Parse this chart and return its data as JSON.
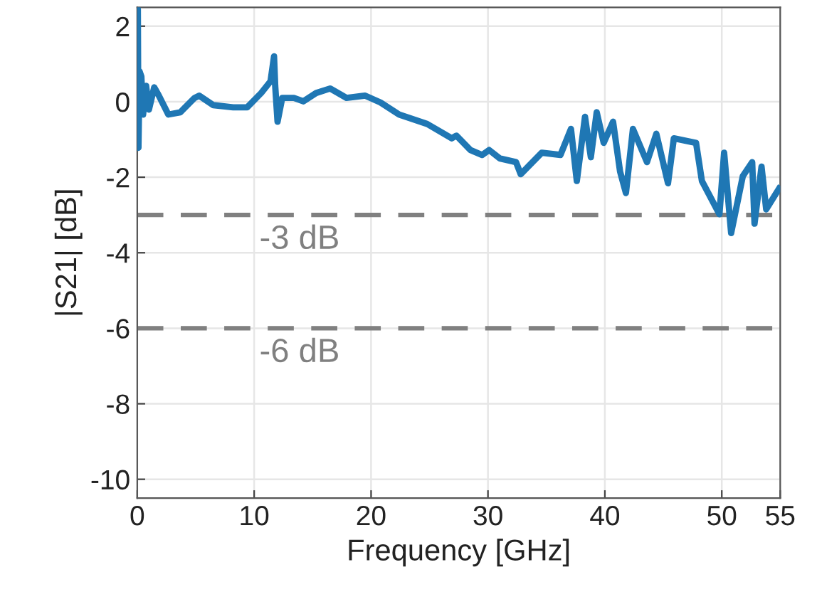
{
  "chart_data": {
    "type": "line",
    "xlabel": "Frequency [GHz]",
    "ylabel": "|S21| [dB]",
    "x": [
      0,
      0.05,
      0.1,
      0.2,
      0.35,
      0.5,
      0.76,
      1.0,
      1.45,
      1.85,
      2.66,
      3.68,
      4.9,
      5.3,
      6.5,
      8.2,
      9.4,
      10.6,
      11.4,
      11.7,
      11.8,
      12.0,
      12.4,
      13.4,
      14.2,
      15.3,
      16.5,
      17.9,
      19.5,
      20.8,
      22.4,
      24.8,
      26.9,
      27.3,
      28.5,
      29.5,
      30.1,
      31.0,
      32.4,
      32.8,
      34.6,
      36.2,
      37.1,
      37.6,
      38.3,
      38.8,
      39.3,
      39.9,
      40.7,
      41.3,
      41.8,
      42.4,
      43.6,
      44.4,
      45.4,
      45.9,
      47.8,
      48.3,
      49.8,
      50.2,
      50.8,
      51.8,
      52.6,
      52.8,
      53.4,
      53.8,
      54.9
    ],
    "series": [
      {
        "color": "#1f77b4",
        "values": [
          0.79,
          2.45,
          -1.22,
          0.8,
          0.67,
          -0.34,
          0.42,
          -0.21,
          0.38,
          0.16,
          -0.34,
          -0.28,
          0.1,
          0.16,
          -0.09,
          -0.15,
          -0.15,
          0.23,
          0.54,
          1.2,
          0.42,
          -0.53,
          0.1,
          0.1,
          0.01,
          0.23,
          0.35,
          0.1,
          0.16,
          -0.02,
          -0.34,
          -0.59,
          -0.97,
          -0.9,
          -1.28,
          -1.41,
          -1.28,
          -1.5,
          -1.6,
          -1.92,
          -1.35,
          -1.41,
          -0.72,
          -2.1,
          -0.4,
          -1.47,
          -0.28,
          -1.09,
          -0.53,
          -1.85,
          -2.42,
          -0.72,
          -1.6,
          -0.85,
          -2.16,
          -0.97,
          -1.09,
          -2.1,
          -2.98,
          -1.35,
          -3.48,
          -1.97,
          -1.6,
          -3.23,
          -1.72,
          -2.85,
          -2.3
        ]
      }
    ],
    "xlim": [
      0,
      55
    ],
    "xticks": [
      0,
      10,
      20,
      30,
      40,
      50,
      55
    ],
    "ylim": [
      -10.5,
      2.5
    ],
    "yticks": [
      -10,
      -8,
      -6,
      -4,
      -2,
      0,
      2
    ],
    "grid": true,
    "line_style": "solid",
    "marker": "none",
    "ref_lines": [
      {
        "axis": "y",
        "value": -3,
        "label": "-3 dB",
        "color": "#808080",
        "line_style": "dashed"
      },
      {
        "axis": "y",
        "value": -6,
        "label": "-6 dB",
        "color": "#808080",
        "line_style": "dashed"
      }
    ]
  }
}
